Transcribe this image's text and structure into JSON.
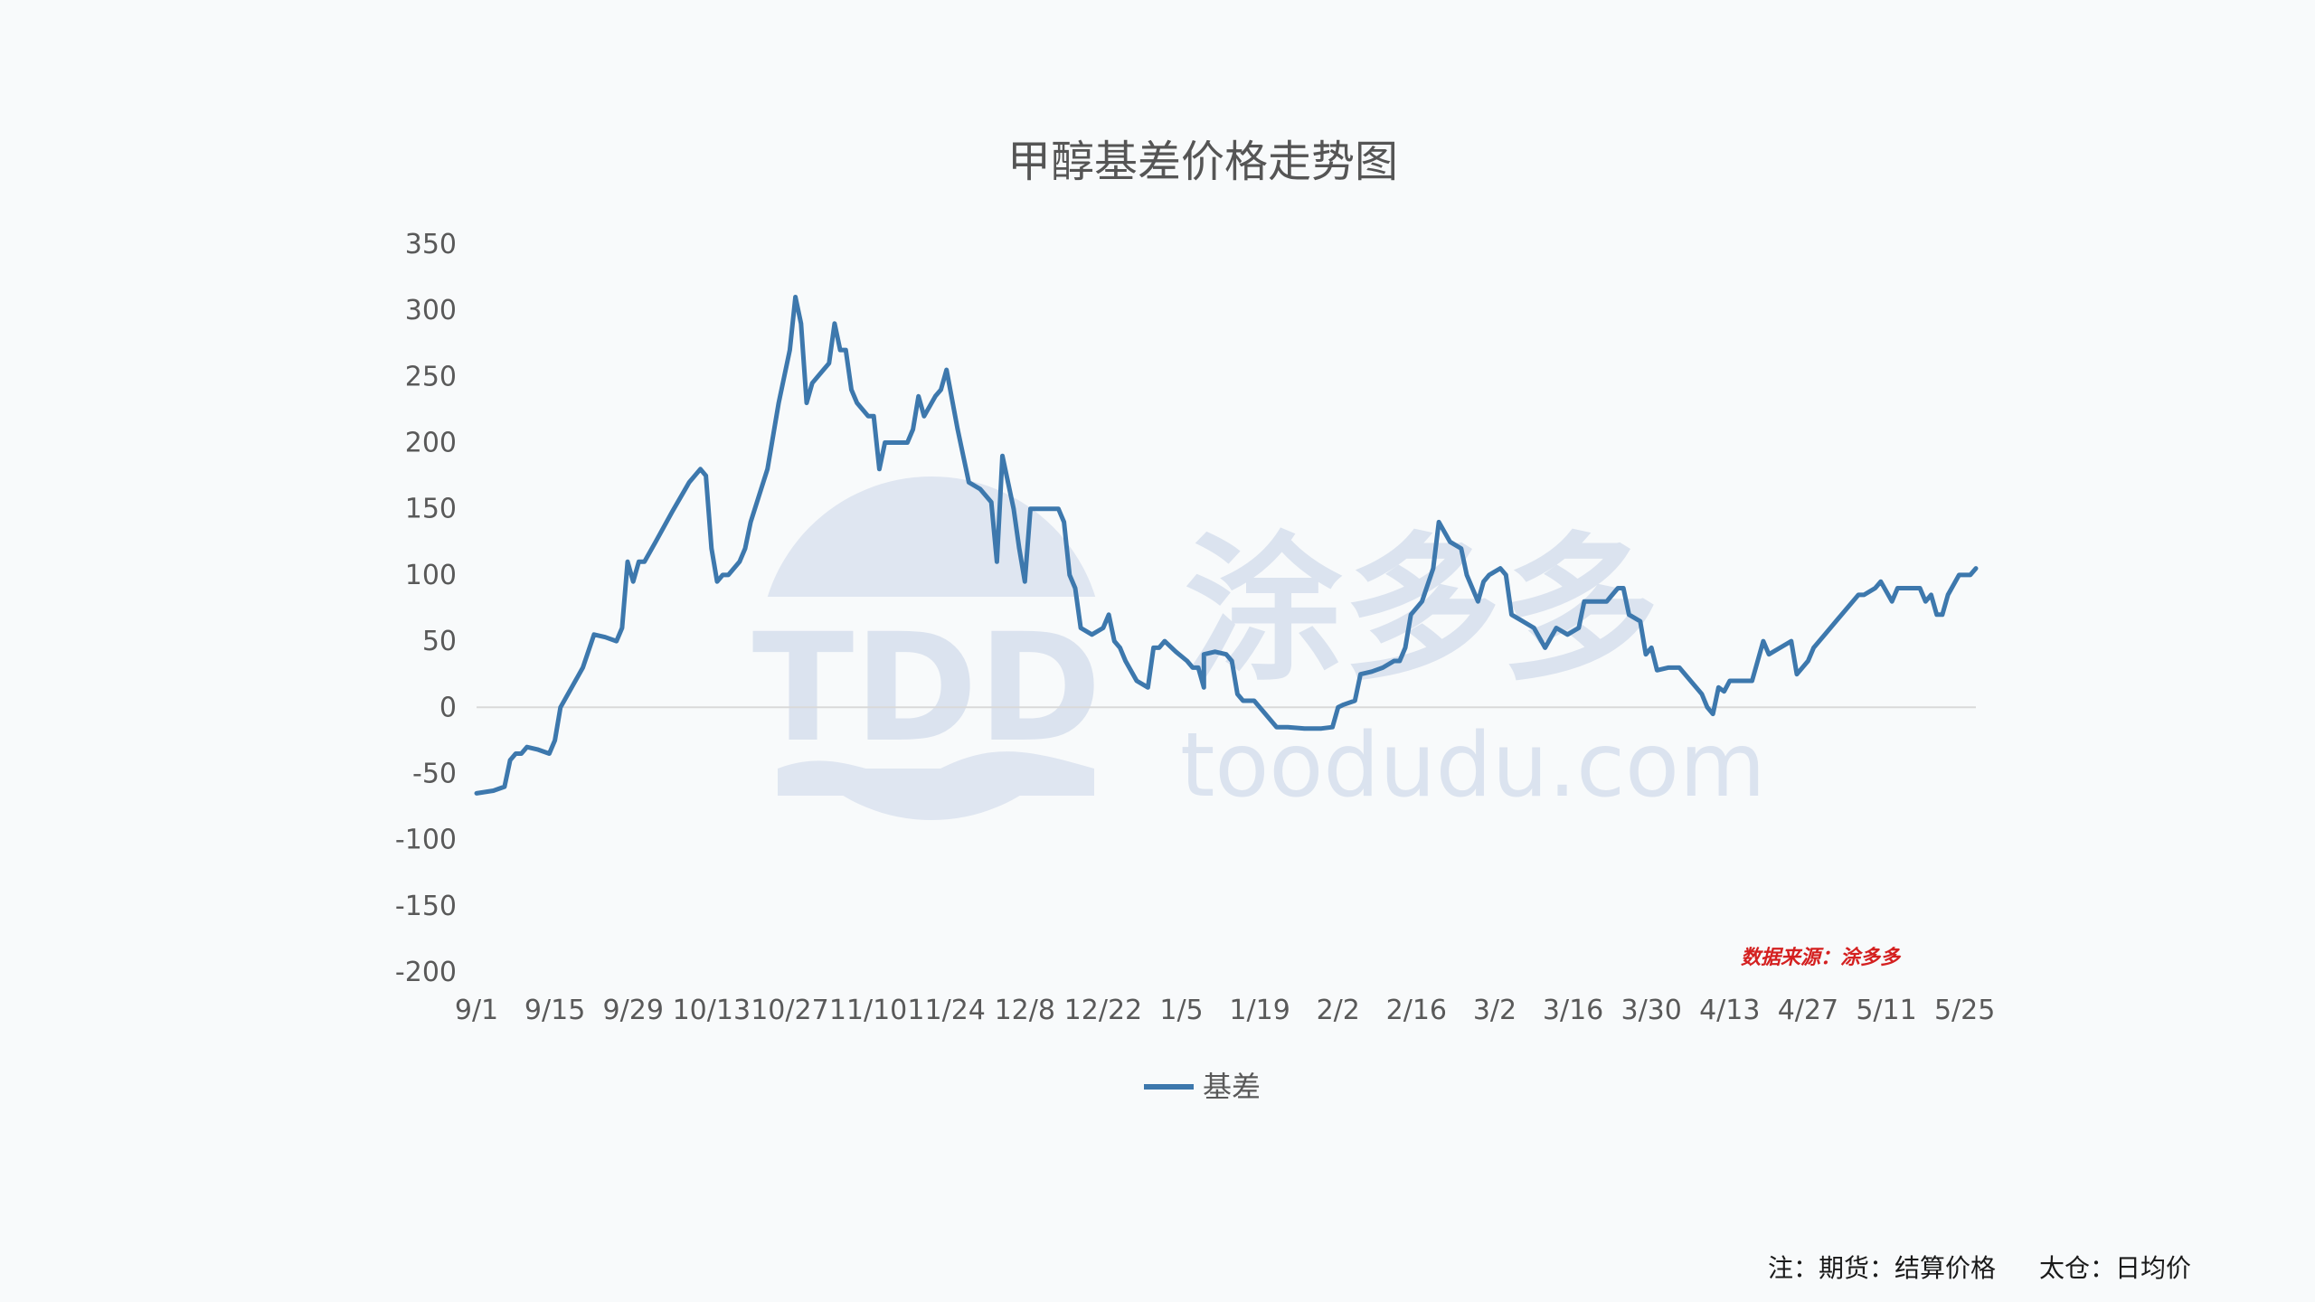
{
  "chart_data": {
    "type": "line",
    "title": "甲醇基差价格走势图",
    "xlabel": "",
    "ylabel": "",
    "ylim": [
      -200,
      350
    ],
    "yticks": [
      350,
      300,
      250,
      200,
      150,
      100,
      50,
      0,
      -50,
      -100,
      -150,
      -200
    ],
    "x_start": "9/1",
    "x_end": "5/27",
    "xticks": [
      "9/1",
      "9/15",
      "9/29",
      "10/13",
      "10/27",
      "11/10",
      "11/24",
      "12/8",
      "12/22",
      "1/5",
      "1/19",
      "2/2",
      "2/16",
      "3/2",
      "3/16",
      "3/30",
      "4/13",
      "4/27",
      "5/11",
      "5/25"
    ],
    "grid": false,
    "legend_position": "bottom",
    "series": [
      {
        "name": "基差",
        "color": "#3d78ad",
        "points": [
          [
            "9/1",
            -65
          ],
          [
            "9/4",
            -63
          ],
          [
            "9/6",
            -60
          ],
          [
            "9/7",
            -40
          ],
          [
            "9/8",
            -35
          ],
          [
            "9/9",
            -35
          ],
          [
            "9/10",
            -30
          ],
          [
            "9/12",
            -32
          ],
          [
            "9/14",
            -35
          ],
          [
            "9/15",
            -25
          ],
          [
            "9/16",
            0
          ],
          [
            "9/18",
            15
          ],
          [
            "9/20",
            30
          ],
          [
            "9/22",
            55
          ],
          [
            "9/24",
            53
          ],
          [
            "9/26",
            50
          ],
          [
            "9/27",
            60
          ],
          [
            "9/28",
            110
          ],
          [
            "9/29",
            95
          ],
          [
            "9/30",
            110
          ],
          [
            "10/1",
            110
          ],
          [
            "10/3",
            125
          ],
          [
            "10/6",
            148
          ],
          [
            "10/9",
            170
          ],
          [
            "10/11",
            180
          ],
          [
            "10/12",
            175
          ],
          [
            "10/13",
            120
          ],
          [
            "10/14",
            95
          ],
          [
            "10/15",
            100
          ],
          [
            "10/16",
            100
          ],
          [
            "10/18",
            110
          ],
          [
            "10/19",
            120
          ],
          [
            "10/20",
            140
          ],
          [
            "10/23",
            180
          ],
          [
            "10/25",
            230
          ],
          [
            "10/27",
            270
          ],
          [
            "10/28",
            310
          ],
          [
            "10/29",
            290
          ],
          [
            "10/30",
            230
          ],
          [
            "10/31",
            245
          ],
          [
            "11/2",
            255
          ],
          [
            "11/3",
            260
          ],
          [
            "11/4",
            290
          ],
          [
            "11/5",
            270
          ],
          [
            "11/6",
            270
          ],
          [
            "11/7",
            240
          ],
          [
            "11/8",
            230
          ],
          [
            "11/10",
            220
          ],
          [
            "11/11",
            220
          ],
          [
            "11/12",
            180
          ],
          [
            "11/13",
            200
          ],
          [
            "11/14",
            200
          ],
          [
            "11/16",
            200
          ],
          [
            "11/17",
            200
          ],
          [
            "11/18",
            210
          ],
          [
            "11/19",
            235
          ],
          [
            "11/20",
            220
          ],
          [
            "11/22",
            235
          ],
          [
            "11/23",
            240
          ],
          [
            "11/24",
            255
          ],
          [
            "11/26",
            210
          ],
          [
            "11/28",
            170
          ],
          [
            "11/30",
            165
          ],
          [
            "12/2",
            155
          ],
          [
            "12/3",
            110
          ],
          [
            "12/4",
            190
          ],
          [
            "12/6",
            150
          ],
          [
            "12/7",
            120
          ],
          [
            "12/8",
            95
          ],
          [
            "12/9",
            150
          ],
          [
            "12/11",
            150
          ],
          [
            "12/14",
            150
          ],
          [
            "12/15",
            140
          ],
          [
            "12/16",
            100
          ],
          [
            "12/17",
            90
          ],
          [
            "12/18",
            60
          ],
          [
            "12/20",
            55
          ],
          [
            "12/22",
            60
          ],
          [
            "12/23",
            70
          ],
          [
            "12/24",
            50
          ],
          [
            "12/25",
            45
          ],
          [
            "12/26",
            35
          ],
          [
            "12/28",
            20
          ],
          [
            "12/30",
            15
          ],
          [
            "12/31",
            45
          ],
          [
            "1/1",
            45
          ],
          [
            "1/2",
            50
          ],
          [
            "1/4",
            42
          ],
          [
            "1/6",
            35
          ],
          [
            "1/7",
            30
          ],
          [
            "1/8",
            30
          ],
          [
            "1/9",
            15
          ],
          [
            "1/9",
            40
          ],
          [
            "1/11",
            42
          ],
          [
            "1/13",
            40
          ],
          [
            "1/14",
            35
          ],
          [
            "1/15",
            10
          ],
          [
            "1/16",
            5
          ],
          [
            "1/18",
            5
          ],
          [
            "1/20",
            -5
          ],
          [
            "1/22",
            -15
          ],
          [
            "1/24",
            -15
          ],
          [
            "1/27",
            -16
          ],
          [
            "1/30",
            -16
          ],
          [
            "2/1",
            -15
          ],
          [
            "2/2",
            0
          ],
          [
            "2/3",
            2
          ],
          [
            "2/5",
            5
          ],
          [
            "2/6",
            25
          ],
          [
            "2/8",
            27
          ],
          [
            "2/10",
            30
          ],
          [
            "2/12",
            35
          ],
          [
            "2/13",
            35
          ],
          [
            "2/14",
            45
          ],
          [
            "2/15",
            70
          ],
          [
            "2/17",
            80
          ],
          [
            "2/19",
            105
          ],
          [
            "2/20",
            140
          ],
          [
            "2/22",
            125
          ],
          [
            "2/24",
            120
          ],
          [
            "2/25",
            100
          ],
          [
            "2/27",
            80
          ],
          [
            "2/28",
            95
          ],
          [
            "3/1",
            100
          ],
          [
            "3/3",
            105
          ],
          [
            "3/4",
            100
          ],
          [
            "3/5",
            70
          ],
          [
            "3/7",
            65
          ],
          [
            "3/9",
            60
          ],
          [
            "3/11",
            45
          ],
          [
            "3/13",
            60
          ],
          [
            "3/15",
            55
          ],
          [
            "3/17",
            60
          ],
          [
            "3/18",
            80
          ],
          [
            "3/20",
            80
          ],
          [
            "3/22",
            80
          ],
          [
            "3/23",
            85
          ],
          [
            "3/24",
            90
          ],
          [
            "3/25",
            90
          ],
          [
            "3/26",
            70
          ],
          [
            "3/28",
            65
          ],
          [
            "3/29",
            40
          ],
          [
            "3/30",
            45
          ],
          [
            "3/31",
            28
          ],
          [
            "4/2",
            30
          ],
          [
            "4/4",
            30
          ],
          [
            "4/6",
            20
          ],
          [
            "4/8",
            10
          ],
          [
            "4/9",
            0
          ],
          [
            "4/10",
            -5
          ],
          [
            "4/11",
            15
          ],
          [
            "4/12",
            12
          ],
          [
            "4/13",
            20
          ],
          [
            "4/15",
            20
          ],
          [
            "4/17",
            20
          ],
          [
            "4/19",
            50
          ],
          [
            "4/20",
            40
          ],
          [
            "4/22",
            45
          ],
          [
            "4/24",
            50
          ],
          [
            "4/25",
            25
          ],
          [
            "4/27",
            35
          ],
          [
            "4/28",
            45
          ],
          [
            "4/30",
            55
          ],
          [
            "5/2",
            65
          ],
          [
            "5/4",
            75
          ],
          [
            "5/6",
            85
          ],
          [
            "5/7",
            85
          ],
          [
            "5/9",
            90
          ],
          [
            "5/10",
            95
          ],
          [
            "5/12",
            80
          ],
          [
            "5/13",
            90
          ],
          [
            "5/15",
            90
          ],
          [
            "5/17",
            90
          ],
          [
            "5/18",
            80
          ],
          [
            "5/19",
            85
          ],
          [
            "5/20",
            70
          ],
          [
            "5/21",
            70
          ],
          [
            "5/22",
            85
          ],
          [
            "5/24",
            100
          ],
          [
            "5/26",
            100
          ],
          [
            "5/27",
            105
          ]
        ]
      }
    ],
    "annotations": [
      "数据来源：涂多多",
      "注：期货：结算价格",
      "太仓：日均价"
    ],
    "watermark": [
      "TDD",
      "涂多多",
      "toodudu.com"
    ]
  }
}
